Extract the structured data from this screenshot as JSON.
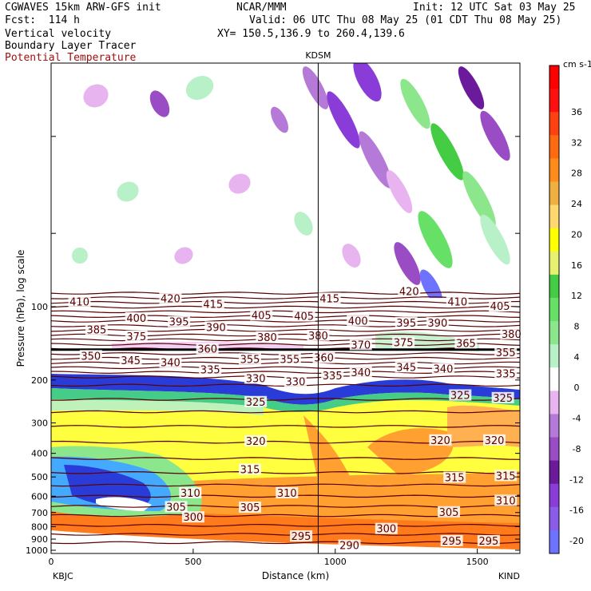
{
  "header": {
    "line1_left": "CGWAVES 15km ARW-GFS init",
    "line1_center": "NCAR/MMM",
    "line1_right": "Init: 12 UTC Sat 03 May 25",
    "line2_left": "Fcst:  114 h",
    "line2_right": "Valid: 06 UTC Thu 08 May 25 (01 CDT Thu 08 May 25)",
    "line3_left": "Vertical velocity",
    "line3_right": "XY= 150.5,136.9 to 260.4,139.6",
    "line4_left": "Boundary Layer Tracer",
    "line5_left": "Potential Temperature"
  },
  "colors": {
    "theta_contour": "#5a0000",
    "title_red": "#a01010",
    "colorbar": [
      "#6e73ff",
      "#8a5ce8",
      "#8a3cd8",
      "#6a1a9a",
      "#9a4cc4",
      "#b57ad8",
      "#e8b4f0",
      "#ffffff",
      "#b8f0c8",
      "#8ce68c",
      "#66e066",
      "#44cc44",
      "#e8f070",
      "#ffff00",
      "#ffd870",
      "#f0b040",
      "#ff8c1a",
      "#ff6a10",
      "#ff4010",
      "#ff1010",
      "#ff0000"
    ]
  },
  "chart_data": {
    "type": "heatmap",
    "title": "KDSM",
    "xlabel": "Distance (km)",
    "ylabel": "Pressure (hPa), log scale",
    "xlim": [
      0,
      1650
    ],
    "x_ticks": [
      0,
      500,
      1000,
      1500
    ],
    "y_ticks": [
      100,
      200,
      300,
      400,
      500,
      600,
      700,
      800,
      900,
      1000
    ],
    "y_scale": "log",
    "left_station": "KBJC",
    "right_station": "KIND",
    "marker_station": "KDSM",
    "marker_x_km": 940,
    "colorbar": {
      "unit": "cm s-1",
      "ticks": [
        36,
        32,
        28,
        24,
        20,
        16,
        12,
        8,
        4,
        0,
        -4,
        -8,
        -12,
        -16,
        -20
      ]
    },
    "theta_labels": [
      {
        "text": "410",
        "x": 100,
        "p": 96
      },
      {
        "text": "420",
        "x": 420,
        "p": 93
      },
      {
        "text": "415",
        "x": 570,
        "p": 98
      },
      {
        "text": "415",
        "x": 980,
        "p": 93
      },
      {
        "text": "420",
        "x": 1260,
        "p": 87
      },
      {
        "text": "410",
        "x": 1430,
        "p": 96
      },
      {
        "text": "405",
        "x": 1580,
        "p": 100
      },
      {
        "text": "400",
        "x": 300,
        "p": 112
      },
      {
        "text": "395",
        "x": 450,
        "p": 116
      },
      {
        "text": "405",
        "x": 740,
        "p": 109
      },
      {
        "text": "405",
        "x": 890,
        "p": 110
      },
      {
        "text": "400",
        "x": 1080,
        "p": 115
      },
      {
        "text": "395",
        "x": 1250,
        "p": 117
      },
      {
        "text": "390",
        "x": 1360,
        "p": 117
      },
      {
        "text": "385",
        "x": 160,
        "p": 125
      },
      {
        "text": "390",
        "x": 580,
        "p": 122
      },
      {
        "text": "380",
        "x": 1620,
        "p": 130
      },
      {
        "text": "375",
        "x": 300,
        "p": 133
      },
      {
        "text": "380",
        "x": 760,
        "p": 134
      },
      {
        "text": "380",
        "x": 940,
        "p": 132
      },
      {
        "text": "370",
        "x": 1090,
        "p": 144
      },
      {
        "text": "375",
        "x": 1240,
        "p": 141
      },
      {
        "text": "365",
        "x": 1460,
        "p": 142
      },
      {
        "text": "360",
        "x": 550,
        "p": 150
      },
      {
        "text": "355",
        "x": 1600,
        "p": 155
      },
      {
        "text": "350",
        "x": 140,
        "p": 160
      },
      {
        "text": "360",
        "x": 960,
        "p": 163
      },
      {
        "text": "345",
        "x": 280,
        "p": 167
      },
      {
        "text": "355",
        "x": 700,
        "p": 165
      },
      {
        "text": "355",
        "x": 840,
        "p": 165
      },
      {
        "text": "340",
        "x": 420,
        "p": 170
      },
      {
        "text": "345",
        "x": 1250,
        "p": 178
      },
      {
        "text": "340",
        "x": 1380,
        "p": 181
      },
      {
        "text": "335",
        "x": 560,
        "p": 182
      },
      {
        "text": "340",
        "x": 1090,
        "p": 187
      },
      {
        "text": "335",
        "x": 1600,
        "p": 189
      },
      {
        "text": "330",
        "x": 720,
        "p": 198
      },
      {
        "text": "330",
        "x": 860,
        "p": 204
      },
      {
        "text": "335",
        "x": 990,
        "p": 193
      },
      {
        "text": "325",
        "x": 1440,
        "p": 232
      },
      {
        "text": "325",
        "x": 1590,
        "p": 238
      },
      {
        "text": "325",
        "x": 720,
        "p": 247
      },
      {
        "text": "320",
        "x": 720,
        "p": 358
      },
      {
        "text": "320",
        "x": 1370,
        "p": 355
      },
      {
        "text": "320",
        "x": 1560,
        "p": 355
      },
      {
        "text": "315",
        "x": 700,
        "p": 468
      },
      {
        "text": "315",
        "x": 1420,
        "p": 505
      },
      {
        "text": "315",
        "x": 1600,
        "p": 497
      },
      {
        "text": "310",
        "x": 490,
        "p": 585
      },
      {
        "text": "310",
        "x": 830,
        "p": 585
      },
      {
        "text": "310",
        "x": 1600,
        "p": 628
      },
      {
        "text": "305",
        "x": 440,
        "p": 667
      },
      {
        "text": "305",
        "x": 700,
        "p": 670
      },
      {
        "text": "305",
        "x": 1400,
        "p": 700
      },
      {
        "text": "300",
        "x": 500,
        "p": 735
      },
      {
        "text": "300",
        "x": 1180,
        "p": 820
      },
      {
        "text": "295",
        "x": 880,
        "p": 880
      },
      {
        "text": "295",
        "x": 1410,
        "p": 920
      },
      {
        "text": "295",
        "x": 1540,
        "p": 920
      },
      {
        "text": "290",
        "x": 1050,
        "p": 960
      }
    ]
  }
}
